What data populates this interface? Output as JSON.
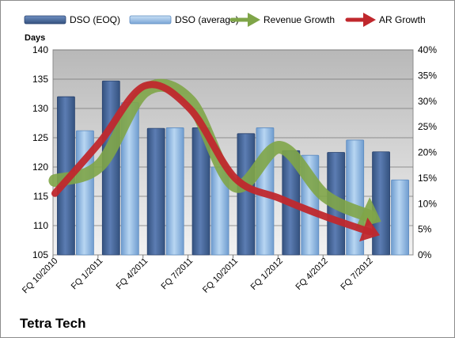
{
  "chart_data": {
    "type": "bar",
    "title": "",
    "company": "Tetra Tech",
    "ylabel": "Days",
    "ylim": [
      105,
      140
    ],
    "y_ticks": [
      105,
      110,
      115,
      120,
      125,
      130,
      135,
      140
    ],
    "y2lim": [
      0,
      40
    ],
    "y2_ticks": [
      "0%",
      "5%",
      "10%",
      "15%",
      "20%",
      "25%",
      "30%",
      "35%",
      "40%"
    ],
    "categories": [
      "FQ 10/2010",
      "FQ 1/2011",
      "FQ 4/2011",
      "FQ 7/2011",
      "FQ 10/2011",
      "FQ 1/2012",
      "FQ 4/2012",
      "FQ 7/2012"
    ],
    "grid": true,
    "legend_position": "top",
    "series": [
      {
        "name": "DSO (EOQ)",
        "kind": "bar",
        "axis": "left",
        "color": "#4a6aa0",
        "values": [
          132,
          134.7,
          126.6,
          126.7,
          125.7,
          122.8,
          122.5,
          122.6
        ]
      },
      {
        "name": "DSO (average)",
        "kind": "bar",
        "axis": "left",
        "color": "#9cc1e6",
        "values": [
          126.2,
          131,
          126.7,
          120,
          126.7,
          122,
          124.6,
          117.8
        ]
      },
      {
        "name": "Revenue Growth",
        "kind": "arrow",
        "axis": "right",
        "color": "#7fa548",
        "values": [
          14.5,
          17.5,
          32,
          30,
          13.5,
          21,
          11.5,
          7.5
        ]
      },
      {
        "name": "AR Growth",
        "kind": "arrow",
        "axis": "right",
        "color": "#c0282d",
        "values": [
          12,
          22,
          33,
          28.5,
          15,
          11,
          7.5,
          4.5
        ]
      }
    ]
  }
}
